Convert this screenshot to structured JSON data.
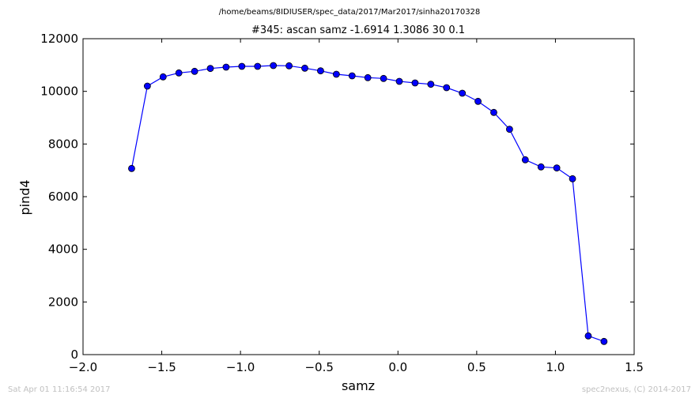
{
  "header": {
    "file_path": "/home/beams/8IDIUSER/spec_data/2017/Mar2017/sinha20170328"
  },
  "footer": {
    "timestamp": "Sat Apr 01 11:16:54 2017",
    "credit": "spec2nexus, (C) 2014-2017"
  },
  "chart_data": {
    "type": "line",
    "title": "#345: ascan  samz -1.6914 1.3086  30 0.1",
    "xlabel": "samz",
    "ylabel": "pind4",
    "xlim": [
      -2.0,
      1.5
    ],
    "ylim": [
      0,
      12000
    ],
    "xticks": [
      -2.0,
      -1.5,
      -1.0,
      -0.5,
      0.0,
      0.5,
      1.0,
      1.5
    ],
    "xtick_labels": [
      "−2.0",
      "−1.5",
      "−1.0",
      "−0.5",
      "0.0",
      "0.5",
      "1.0",
      "1.5"
    ],
    "yticks": [
      0,
      2000,
      4000,
      6000,
      8000,
      10000,
      12000
    ],
    "ytick_labels": [
      "0",
      "2000",
      "4000",
      "6000",
      "8000",
      "10000",
      "12000"
    ],
    "grid": false,
    "color": "#0000ff",
    "markers": "circle",
    "series": [
      {
        "x": [
          -1.6914,
          -1.5914,
          -1.4914,
          -1.3914,
          -1.2914,
          -1.1914,
          -1.0914,
          -0.9914,
          -0.8914,
          -0.7914,
          -0.6914,
          -0.5914,
          -0.4914,
          -0.3914,
          -0.2914,
          -0.1914,
          -0.0914,
          0.0086,
          0.1086,
          0.2086,
          0.3086,
          0.4086,
          0.5086,
          0.6086,
          0.7086,
          0.8086,
          0.9086,
          1.0086,
          1.1086,
          1.2086,
          1.3086
        ],
        "y": [
          7070,
          10200,
          10550,
          10700,
          10760,
          10870,
          10920,
          10950,
          10950,
          10980,
          10970,
          10880,
          10780,
          10650,
          10590,
          10520,
          10490,
          10380,
          10320,
          10270,
          10140,
          9930,
          9620,
          9200,
          8560,
          7400,
          7130,
          7090,
          6680,
          710,
          500
        ]
      }
    ]
  }
}
